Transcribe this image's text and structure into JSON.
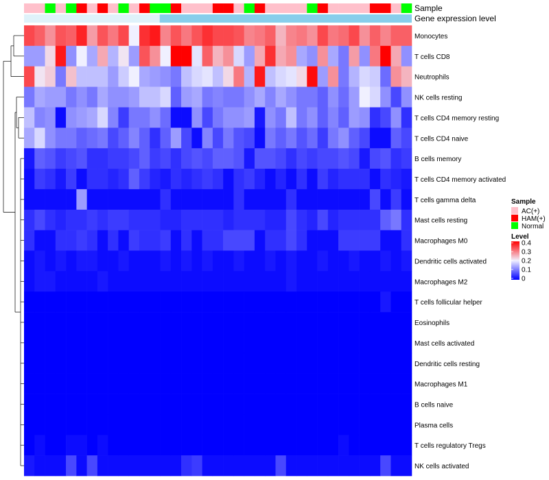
{
  "chart_data": {
    "type": "heatmap",
    "title": "",
    "annotations": [
      {
        "name": "Sample",
        "label": "Sample"
      },
      {
        "name": "Gene expression level",
        "label": "Gene expression level"
      }
    ],
    "sample_groups": [
      "AC(+)",
      "AC(+)",
      "Normal",
      "AC(+)",
      "Normal",
      "HAM(+)",
      "AC(+)",
      "HAM(+)",
      "AC(+)",
      "Normal",
      "AC(+)",
      "HAM(+)",
      "Normal",
      "Normal",
      "HAM(+)",
      "AC(+)",
      "AC(+)",
      "AC(+)",
      "HAM(+)",
      "HAM(+)",
      "AC(+)",
      "Normal",
      "HAM(+)",
      "AC(+)",
      "AC(+)",
      "AC(+)",
      "AC(+)",
      "Normal",
      "HAM(+)",
      "AC(+)",
      "AC(+)",
      "AC(+)",
      "AC(+)",
      "HAM(+)",
      "HAM(+)",
      "AC(+)",
      "Normal"
    ],
    "rows": [
      {
        "label": "Monocytes",
        "values": [
          0.34,
          0.32,
          0.28,
          0.33,
          0.32,
          0.37,
          0.27,
          0.33,
          0.3,
          0.34,
          0.2,
          0.36,
          0.38,
          0.29,
          0.33,
          0.3,
          0.33,
          0.36,
          0.34,
          0.34,
          0.33,
          0.29,
          0.3,
          0.32,
          0.25,
          0.29,
          0.3,
          0.28,
          0.34,
          0.3,
          0.31,
          0.34,
          0.28,
          0.32,
          0.29,
          0.32,
          0.32
        ]
      },
      {
        "label": "T cells CD8",
        "values": [
          0.13,
          0.13,
          0.22,
          0.38,
          0.12,
          0.2,
          0.14,
          0.26,
          0.15,
          0.21,
          0.13,
          0.33,
          0.28,
          0.2,
          0.4,
          0.4,
          0.19,
          0.32,
          0.25,
          0.28,
          0.18,
          0.13,
          0.26,
          0.36,
          0.26,
          0.28,
          0.14,
          0.12,
          0.28,
          0.14,
          0.1,
          0.27,
          0.12,
          0.3,
          0.4,
          0.26,
          0.12
        ]
      },
      {
        "label": "Neutrophils",
        "values": [
          0.34,
          0.21,
          0.23,
          0.1,
          0.24,
          0.16,
          0.16,
          0.16,
          0.13,
          0.17,
          0.2,
          0.14,
          0.13,
          0.12,
          0.1,
          0.16,
          0.18,
          0.19,
          0.16,
          0.22,
          0.3,
          0.15,
          0.38,
          0.16,
          0.18,
          0.19,
          0.22,
          0.39,
          0.13,
          0.28,
          0.1,
          0.15,
          0.18,
          0.17,
          0.09,
          0.28,
          0.25
        ]
      },
      {
        "label": "NK cells resting",
        "values": [
          0.1,
          0.14,
          0.13,
          0.13,
          0.1,
          0.12,
          0.1,
          0.14,
          0.12,
          0.12,
          0.13,
          0.16,
          0.16,
          0.18,
          0.08,
          0.13,
          0.14,
          0.1,
          0.11,
          0.1,
          0.1,
          0.12,
          0.14,
          0.11,
          0.14,
          0.12,
          0.1,
          0.1,
          0.08,
          0.12,
          0.09,
          0.13,
          0.2,
          0.18,
          0.12,
          0.06,
          0.12
        ]
      },
      {
        "label": "T cells CD4 memory resting",
        "values": [
          0.16,
          0.11,
          0.12,
          0.01,
          0.12,
          0.13,
          0.14,
          0.18,
          0.11,
          0.05,
          0.1,
          0.1,
          0.12,
          0.09,
          0.01,
          0.01,
          0.12,
          0.06,
          0.1,
          0.12,
          0.12,
          0.13,
          0.02,
          0.12,
          0.1,
          0.16,
          0.1,
          0.12,
          0.08,
          0.11,
          0.08,
          0.13,
          0.12,
          0.04,
          0.06,
          0.12,
          0.04
        ]
      },
      {
        "label": "T cells CD4 naive",
        "values": [
          0.14,
          0.18,
          0.12,
          0.1,
          0.1,
          0.08,
          0.09,
          0.1,
          0.06,
          0.08,
          0.11,
          0.08,
          0.04,
          0.08,
          0.13,
          0.06,
          0.01,
          0.11,
          0.06,
          0.1,
          0.07,
          0.06,
          0.01,
          0.1,
          0.08,
          0.1,
          0.07,
          0.09,
          0.05,
          0.1,
          0.12,
          0.08,
          0.06,
          0.01,
          0.01,
          0.08,
          0.06
        ]
      },
      {
        "label": "B cells memory",
        "values": [
          0.02,
          0.08,
          0.07,
          0.05,
          0.06,
          0.07,
          0.04,
          0.04,
          0.05,
          0.05,
          0.06,
          0.08,
          0.05,
          0.06,
          0.04,
          0.06,
          0.07,
          0.06,
          0.08,
          0.08,
          0.07,
          0.02,
          0.07,
          0.07,
          0.06,
          0.04,
          0.06,
          0.05,
          0.06,
          0.06,
          0.07,
          0.06,
          0.02,
          0.06,
          0.07,
          0.04,
          0.05
        ]
      },
      {
        "label": "T cells CD4 memory activated",
        "values": [
          0.01,
          0.05,
          0.04,
          0.02,
          0.05,
          0.01,
          0.04,
          0.04,
          0.03,
          0.04,
          0.08,
          0.05,
          0.03,
          0.02,
          0.04,
          0.03,
          0.04,
          0.05,
          0.04,
          0.01,
          0.04,
          0.05,
          0.03,
          0.01,
          0.03,
          0.01,
          0.04,
          0.01,
          0.05,
          0.03,
          0.04,
          0.04,
          0.04,
          0.01,
          0.04,
          0.03,
          0.02
        ]
      },
      {
        "label": "T cells gamma delta",
        "values": [
          0.01,
          0.01,
          0.01,
          0.01,
          0.01,
          0.13,
          0.01,
          0.01,
          0.01,
          0.01,
          0.01,
          0.01,
          0.01,
          0.04,
          0.01,
          0.01,
          0.01,
          0.01,
          0.01,
          0.01,
          0.04,
          0.01,
          0.01,
          0.01,
          0.01,
          0.04,
          0.01,
          0.01,
          0.01,
          0.01,
          0.01,
          0.01,
          0.01,
          0.06,
          0.01,
          0.05,
          0.01
        ]
      },
      {
        "label": "Mast cells resting",
        "values": [
          0.04,
          0.06,
          0.04,
          0.03,
          0.04,
          0.04,
          0.05,
          0.04,
          0.05,
          0.05,
          0.04,
          0.04,
          0.04,
          0.03,
          0.03,
          0.04,
          0.04,
          0.04,
          0.04,
          0.03,
          0.04,
          0.04,
          0.04,
          0.03,
          0.03,
          0.06,
          0.04,
          0.03,
          0.06,
          0.03,
          0.04,
          0.04,
          0.04,
          0.04,
          0.08,
          0.1,
          0.04
        ]
      },
      {
        "label": "Macrophages M0",
        "values": [
          0.04,
          0.01,
          0.01,
          0.04,
          0.04,
          0.05,
          0.04,
          0.01,
          0.04,
          0.01,
          0.05,
          0.04,
          0.04,
          0.05,
          0.01,
          0.04,
          0.01,
          0.04,
          0.04,
          0.06,
          0.06,
          0.06,
          0.01,
          0.04,
          0.04,
          0.06,
          0.04,
          0.01,
          0.01,
          0.01,
          0.05,
          0.05,
          0.05,
          0.05,
          0.01,
          0.01,
          0.04
        ]
      },
      {
        "label": "Dendritic cells activated",
        "values": [
          0.01,
          0.02,
          0.01,
          0.02,
          0.01,
          0.02,
          0.02,
          0.01,
          0.01,
          0.02,
          0.01,
          0.01,
          0.01,
          0.02,
          0.01,
          0.02,
          0.01,
          0.02,
          0.01,
          0.01,
          0.02,
          0.01,
          0.01,
          0.02,
          0.01,
          0.02,
          0.01,
          0.01,
          0.02,
          0.01,
          0.01,
          0.02,
          0.01,
          0.01,
          0.02,
          0.01,
          0.02
        ]
      },
      {
        "label": "Macrophages M2",
        "values": [
          0.01,
          0.02,
          0.02,
          0.01,
          0.01,
          0.01,
          0.01,
          0.02,
          0.01,
          0.01,
          0.01,
          0.01,
          0.01,
          0.01,
          0.01,
          0.01,
          0.01,
          0.01,
          0.01,
          0.01,
          0.01,
          0.01,
          0.01,
          0.01,
          0.01,
          0.02,
          0.01,
          0.01,
          0.01,
          0.01,
          0.01,
          0.01,
          0.01,
          0.01,
          0.01,
          0.01,
          0.01
        ]
      },
      {
        "label": "T cells follicular helper",
        "values": [
          0,
          0,
          0,
          0,
          0,
          0,
          0,
          0,
          0,
          0,
          0,
          0,
          0,
          0,
          0,
          0,
          0,
          0,
          0,
          0,
          0,
          0,
          0,
          0,
          0,
          0,
          0,
          0,
          0,
          0,
          0,
          0,
          0,
          0,
          0.02,
          0,
          0
        ]
      },
      {
        "label": "Eosinophils",
        "values": [
          0,
          0,
          0,
          0,
          0,
          0,
          0,
          0,
          0,
          0,
          0,
          0,
          0,
          0,
          0,
          0,
          0,
          0,
          0,
          0,
          0,
          0,
          0,
          0,
          0,
          0,
          0,
          0,
          0,
          0,
          0,
          0,
          0,
          0,
          0,
          0,
          0
        ]
      },
      {
        "label": "Mast cells activated",
        "values": [
          0,
          0,
          0,
          0,
          0,
          0,
          0,
          0,
          0,
          0,
          0,
          0,
          0,
          0,
          0,
          0,
          0,
          0,
          0,
          0,
          0,
          0,
          0,
          0,
          0,
          0,
          0,
          0,
          0,
          0,
          0,
          0,
          0,
          0,
          0,
          0,
          0
        ]
      },
      {
        "label": "Dendritic cells resting",
        "values": [
          0,
          0,
          0,
          0,
          0,
          0,
          0,
          0,
          0,
          0,
          0,
          0,
          0,
          0,
          0,
          0,
          0,
          0,
          0,
          0,
          0,
          0,
          0,
          0,
          0,
          0,
          0,
          0,
          0,
          0,
          0,
          0,
          0,
          0,
          0,
          0,
          0
        ]
      },
      {
        "label": "Macrophages M1",
        "values": [
          0,
          0,
          0,
          0,
          0,
          0,
          0,
          0,
          0,
          0,
          0,
          0,
          0,
          0,
          0,
          0,
          0,
          0,
          0,
          0,
          0,
          0,
          0,
          0,
          0,
          0,
          0,
          0,
          0,
          0,
          0,
          0,
          0,
          0,
          0,
          0,
          0
        ]
      },
      {
        "label": "B cells naive",
        "values": [
          0,
          0,
          0,
          0,
          0,
          0,
          0,
          0,
          0,
          0,
          0,
          0,
          0,
          0,
          0,
          0,
          0,
          0,
          0,
          0,
          0,
          0,
          0,
          0,
          0,
          0,
          0,
          0,
          0,
          0,
          0,
          0,
          0,
          0,
          0,
          0,
          0
        ]
      },
      {
        "label": "Plasma cells",
        "values": [
          0,
          0,
          0,
          0,
          0,
          0,
          0,
          0,
          0,
          0,
          0,
          0,
          0,
          0,
          0,
          0,
          0,
          0,
          0,
          0,
          0,
          0,
          0,
          0,
          0,
          0,
          0,
          0,
          0,
          0,
          0,
          0,
          0,
          0,
          0,
          0,
          0
        ]
      },
      {
        "label": "T cells regulatory  Tregs",
        "values": [
          0,
          0.01,
          0,
          0,
          0.01,
          0.01,
          0,
          0.01,
          0,
          0,
          0,
          0,
          0,
          0,
          0,
          0,
          0,
          0,
          0,
          0,
          0,
          0,
          0,
          0,
          0,
          0,
          0,
          0,
          0,
          0,
          0.01,
          0,
          0,
          0,
          0,
          0,
          0
        ]
      },
      {
        "label": "NK cells activated",
        "values": [
          0.02,
          0.01,
          0.01,
          0.01,
          0.06,
          0.01,
          0.06,
          0.01,
          0.01,
          0.01,
          0.01,
          0.01,
          0.01,
          0.01,
          0.01,
          0.04,
          0.05,
          0.01,
          0.01,
          0.01,
          0.01,
          0.01,
          0.01,
          0.01,
          0.06,
          0.01,
          0.01,
          0.01,
          0.01,
          0.01,
          0.01,
          0.01,
          0.01,
          0.01,
          0.06,
          0.01,
          0.01
        ]
      }
    ],
    "dendrogram_order": [
      "Monocytes",
      "T cells CD8",
      "Neutrophils",
      "NK cells resting",
      "T cells CD4 memory resting",
      "T cells CD4 naive",
      "B cells memory",
      "T cells CD4 memory activated",
      "T cells gamma delta",
      "Mast cells resting",
      "Macrophages M0",
      "Dendritic cells activated",
      "Macrophages M2",
      "T cells follicular helper",
      "Eosinophils",
      "Mast cells activated",
      "Dendritic cells resting",
      "Macrophages M1",
      "B cells naive",
      "Plasma cells",
      "T cells regulatory  Tregs",
      "NK cells activated"
    ],
    "legend_sample": {
      "title": "Sample",
      "items": [
        {
          "label": "AC(+)",
          "color": "#FFC0CB"
        },
        {
          "label": "HAM(+)",
          "color": "#FF0000"
        },
        {
          "label": "Normal",
          "color": "#00FF00"
        }
      ]
    },
    "legend_level": {
      "title": "Level",
      "range": [
        0,
        0.4
      ],
      "ticks": [
        "0.4",
        "0.3",
        "0.2",
        "0.1",
        "0"
      ],
      "colors": {
        "low": "#0000FF",
        "mid": "#F0F0FF",
        "high": "#FF0000"
      }
    },
    "expression_level_color": "#87CEEB"
  }
}
